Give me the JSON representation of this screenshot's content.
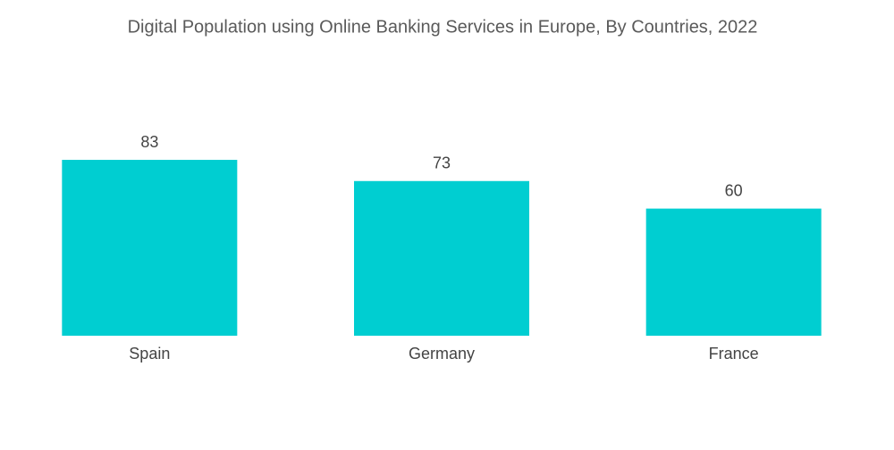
{
  "chart_data": {
    "type": "bar",
    "title": "Digital Population using Online Banking Services in Europe, By Countries, 2022",
    "categories": [
      "Spain",
      "Germany",
      "France"
    ],
    "values": [
      83,
      73,
      60
    ],
    "color": "#00ced1"
  }
}
